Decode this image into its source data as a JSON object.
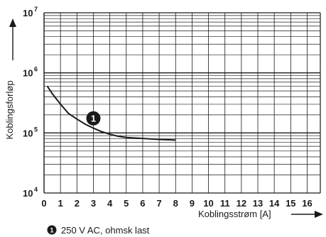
{
  "chart_data": {
    "type": "line",
    "x_label": "Koblingsstrøm [A]",
    "y_label": "Koblingsforløp",
    "x_ticks": [
      "0",
      "1",
      "2",
      "3",
      "4",
      "5",
      "6",
      "7",
      "8",
      "9",
      "10",
      "11",
      "12",
      "13",
      "14",
      "15",
      "16"
    ],
    "xlim": [
      0,
      16.8
    ],
    "y_scale": "log",
    "ylim": [
      10000,
      10000000
    ],
    "y_ticks": [
      {
        "base": "10",
        "exp": "4",
        "value": 10000
      },
      {
        "base": "10",
        "exp": "5",
        "value": 100000
      },
      {
        "base": "10",
        "exp": "6",
        "value": 1000000
      },
      {
        "base": "10",
        "exp": "7",
        "value": 10000000
      }
    ],
    "grid": true,
    "series": [
      {
        "x": [
          0.2,
          0.5,
          1.0,
          1.5,
          2.0,
          2.5,
          3.0,
          3.5,
          4.0,
          4.5,
          5.0,
          6.0,
          7.0,
          8.0
        ],
        "y": [
          600000,
          450000,
          300000,
          210000,
          170000,
          140000,
          120000,
          105000,
          95000,
          88000,
          84000,
          81000,
          78000,
          76000
        ],
        "color": "#1a1a1a"
      }
    ],
    "annotations": [
      {
        "label": "1",
        "x": 3.0,
        "y": 175000
      }
    ],
    "legend": [
      {
        "marker": "1",
        "text": "250 V AC, ohmsk last"
      }
    ]
  }
}
